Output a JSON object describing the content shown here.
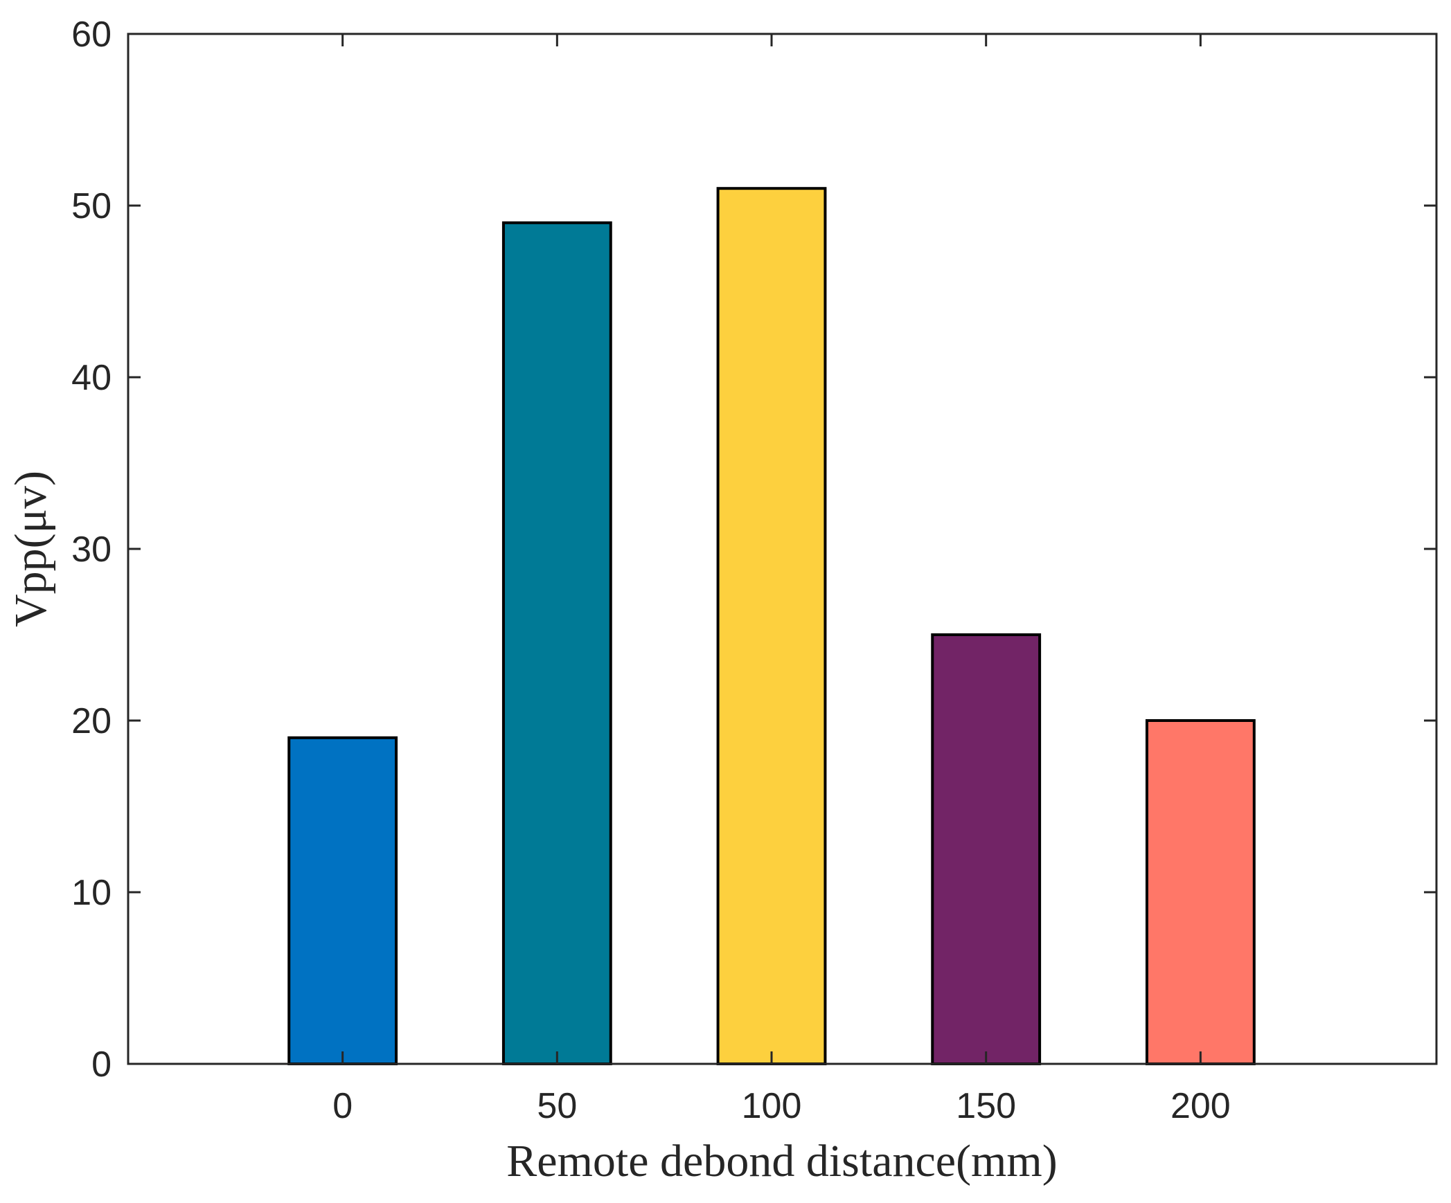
{
  "chart_data": {
    "type": "bar",
    "categories": [
      "0",
      "50",
      "100",
      "150",
      "200"
    ],
    "values": [
      19,
      49,
      51,
      25,
      20
    ],
    "colors": [
      "#0072C2",
      "#007A96",
      "#FDD03E",
      "#722466",
      "#FF7768"
    ],
    "xlabel": "Remote debond distance(mm)",
    "ylabel": "Vpp(μv)",
    "ylim": [
      0,
      60
    ],
    "yticks": [
      "0",
      "10",
      "20",
      "30",
      "40",
      "50",
      "60"
    ],
    "grid": false,
    "legend": "none"
  }
}
